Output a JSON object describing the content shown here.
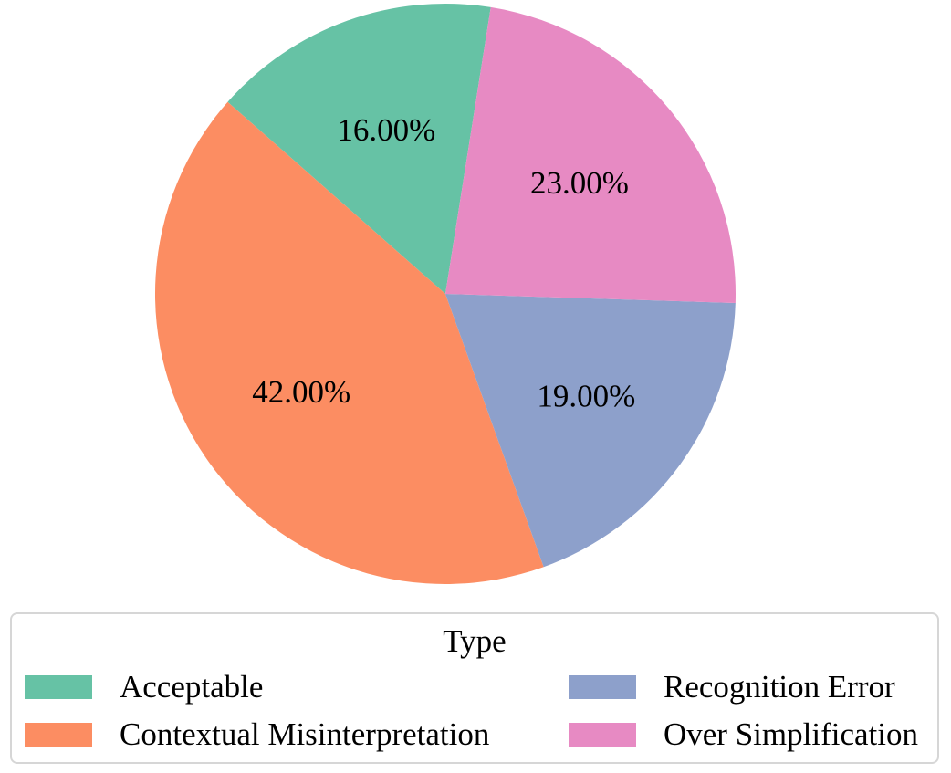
{
  "chart_data": {
    "type": "pie",
    "legend_title": "Type",
    "legend_position": "bottom",
    "start_angle_deg": 81,
    "direction": "counterclockwise",
    "slices": [
      {
        "name": "Acceptable",
        "value": 16,
        "label": "16.00%",
        "color": "#66c2a5"
      },
      {
        "name": "Contextual Misinterpretation",
        "value": 42,
        "label": "42.00%",
        "color": "#fc8d62"
      },
      {
        "name": "Recognition Error",
        "value": 19,
        "label": "19.00%",
        "color": "#8da0cb"
      },
      {
        "name": "Over Simplification",
        "value": 23,
        "label": "23.00%",
        "color": "#e78ac3"
      }
    ]
  },
  "legend": {
    "title": "Type",
    "items": [
      {
        "label": "Acceptable",
        "color": "#66c2a5"
      },
      {
        "label": "Recognition Error",
        "color": "#8da0cb"
      },
      {
        "label": "Contextual Misinterpretation",
        "color": "#fc8d62"
      },
      {
        "label": "Over Simplification",
        "color": "#e78ac3"
      }
    ]
  }
}
